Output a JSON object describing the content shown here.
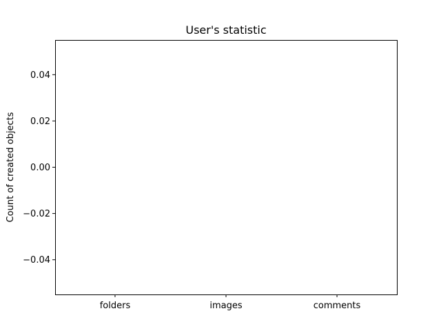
{
  "chart_data": {
    "type": "bar",
    "title": "User's statistic",
    "xlabel": "",
    "ylabel": "Count of created objects",
    "categories": [
      "folders",
      "images",
      "comments"
    ],
    "values": [
      0,
      0,
      0
    ],
    "ylim": [
      -0.055,
      0.055
    ],
    "yticks": [
      -0.04,
      -0.02,
      0.0,
      0.02,
      0.04
    ],
    "ytick_labels": [
      "−0.04",
      "−0.02",
      "0.00",
      "0.02",
      "0.04"
    ],
    "grid": false,
    "colors": {
      "axes": "#000000",
      "background": "#ffffff",
      "bar": "#1f77b4"
    }
  }
}
